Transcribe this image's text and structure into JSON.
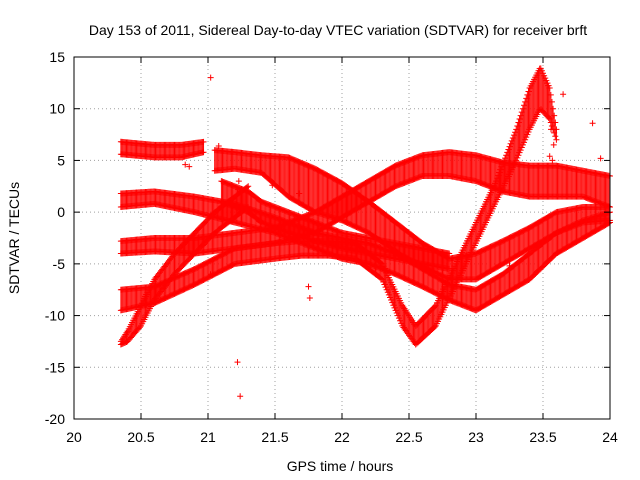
{
  "chart_data": {
    "type": "scatter",
    "title": "Day 153 of 2011, Sidereal Day-to-day VTEC variation (SDTVAR) for receiver brft",
    "xlabel": "GPS time / hours",
    "ylabel": "SDTVAR / TECUs",
    "xlim": [
      20,
      24
    ],
    "ylim": [
      -20,
      15
    ],
    "xticks": [
      "20",
      "20.5",
      "21",
      "21.5",
      "22",
      "22.5",
      "23",
      "23.5",
      "24"
    ],
    "yticks": [
      "15",
      "10",
      "5",
      "0",
      "-5",
      "-10",
      "-15",
      "-20"
    ],
    "grid": true,
    "marker": "+",
    "marker_color": "#ff0000",
    "series": [
      {
        "band": true,
        "upper": [
          [
            20.35,
            6.8
          ],
          [
            20.6,
            6.5
          ],
          [
            20.8,
            6.5
          ],
          [
            20.97,
            6.8
          ]
        ],
        "lower": [
          [
            20.35,
            5.6
          ],
          [
            20.6,
            5.3
          ],
          [
            20.8,
            5.3
          ],
          [
            20.97,
            5.8
          ]
        ]
      },
      {
        "band": true,
        "upper": [
          [
            21.05,
            6.0
          ],
          [
            21.2,
            5.8
          ],
          [
            21.4,
            5.5
          ],
          [
            21.6,
            5.3
          ],
          [
            21.8,
            4.2
          ],
          [
            22.0,
            2.8
          ],
          [
            22.2,
            1.0
          ],
          [
            22.45,
            -1.5
          ],
          [
            22.6,
            -3.0
          ],
          [
            22.8,
            -4.5
          ],
          [
            23.0,
            -4.0
          ],
          [
            23.2,
            -2.8
          ],
          [
            23.4,
            -1.5
          ],
          [
            23.6,
            0.0
          ],
          [
            23.8,
            0.5
          ],
          [
            24.0,
            0.5
          ]
        ],
        "lower": [
          [
            21.05,
            4.0
          ],
          [
            21.2,
            4.2
          ],
          [
            21.4,
            3.8
          ],
          [
            21.6,
            1.5
          ],
          [
            21.8,
            0.0
          ],
          [
            22.0,
            -0.8
          ],
          [
            22.2,
            -2.0
          ],
          [
            22.45,
            -4.2
          ],
          [
            22.6,
            -5.2
          ],
          [
            22.8,
            -6.5
          ],
          [
            23.0,
            -6.5
          ],
          [
            23.2,
            -5.0
          ],
          [
            23.4,
            -3.5
          ],
          [
            23.6,
            -2.0
          ],
          [
            23.8,
            -1.0
          ],
          [
            24.0,
            -0.8
          ]
        ]
      },
      {
        "band": true,
        "upper": [
          [
            20.35,
            1.8
          ],
          [
            20.6,
            2.0
          ],
          [
            20.9,
            1.5
          ],
          [
            21.2,
            0.8
          ],
          [
            21.5,
            -0.5
          ],
          [
            21.8,
            -2.0
          ],
          [
            22.0,
            -2.5
          ],
          [
            22.2,
            -3.0
          ],
          [
            22.4,
            -4.0
          ],
          [
            22.6,
            -5.5
          ],
          [
            22.8,
            -7.0
          ],
          [
            23.0,
            -7.5
          ],
          [
            23.2,
            -6.0
          ],
          [
            23.4,
            -4.0
          ],
          [
            23.6,
            -2.0
          ],
          [
            23.8,
            -0.8
          ],
          [
            24.0,
            0.0
          ]
        ],
        "lower": [
          [
            20.35,
            0.5
          ],
          [
            20.6,
            0.8
          ],
          [
            20.9,
            0.0
          ],
          [
            21.2,
            -1.0
          ],
          [
            21.5,
            -2.0
          ],
          [
            21.8,
            -3.5
          ],
          [
            22.0,
            -4.5
          ],
          [
            22.2,
            -5.0
          ],
          [
            22.4,
            -6.0
          ],
          [
            22.6,
            -7.2
          ],
          [
            22.8,
            -8.5
          ],
          [
            23.0,
            -9.5
          ],
          [
            23.2,
            -8.0
          ],
          [
            23.4,
            -6.5
          ],
          [
            23.6,
            -4.0
          ],
          [
            23.8,
            -2.5
          ],
          [
            24.0,
            -1.0
          ]
        ]
      },
      {
        "band": true,
        "upper": [
          [
            20.35,
            -2.8
          ],
          [
            20.6,
            -2.5
          ],
          [
            20.9,
            -2.5
          ],
          [
            21.2,
            -2.0
          ],
          [
            21.5,
            -1.5
          ],
          [
            21.8,
            0.0
          ],
          [
            22.0,
            1.5
          ],
          [
            22.2,
            3.0
          ],
          [
            22.4,
            4.5
          ],
          [
            22.6,
            5.5
          ],
          [
            22.8,
            5.8
          ],
          [
            23.0,
            5.5
          ],
          [
            23.2,
            4.8
          ],
          [
            23.4,
            4.5
          ],
          [
            23.6,
            4.5
          ],
          [
            23.8,
            4.0
          ],
          [
            24.0,
            3.5
          ]
        ],
        "lower": [
          [
            20.35,
            -4.0
          ],
          [
            20.6,
            -3.8
          ],
          [
            20.9,
            -4.0
          ],
          [
            21.2,
            -3.5
          ],
          [
            21.5,
            -3.0
          ],
          [
            21.8,
            -2.0
          ],
          [
            22.0,
            -0.5
          ],
          [
            22.2,
            1.0
          ],
          [
            22.4,
            2.5
          ],
          [
            22.6,
            3.5
          ],
          [
            22.8,
            3.5
          ],
          [
            23.0,
            3.0
          ],
          [
            23.2,
            2.0
          ],
          [
            23.4,
            1.5
          ],
          [
            23.6,
            1.5
          ],
          [
            23.8,
            1.5
          ],
          [
            24.0,
            0.5
          ]
        ]
      },
      {
        "band": true,
        "upper": [
          [
            20.35,
            -7.5
          ],
          [
            20.6,
            -7.2
          ],
          [
            20.9,
            -5.5
          ],
          [
            21.2,
            -3.5
          ],
          [
            21.5,
            -3.0
          ],
          [
            21.7,
            -2.8
          ],
          [
            21.9,
            -2.8
          ],
          [
            22.1,
            -3.0
          ],
          [
            22.3,
            -5.0
          ],
          [
            22.45,
            -9.0
          ],
          [
            22.55,
            -11.0
          ],
          [
            22.7,
            -9.0
          ],
          [
            22.85,
            -5.0
          ],
          [
            23.0,
            -1.0
          ],
          [
            23.15,
            3.0
          ],
          [
            23.3,
            8.0
          ],
          [
            23.4,
            12.0
          ],
          [
            23.48,
            14.0
          ],
          [
            23.55,
            12.0
          ],
          [
            23.6,
            8.0
          ]
        ],
        "lower": [
          [
            20.35,
            -9.5
          ],
          [
            20.6,
            -8.8
          ],
          [
            20.9,
            -7.0
          ],
          [
            21.2,
            -5.0
          ],
          [
            21.5,
            -4.5
          ],
          [
            21.7,
            -4.2
          ],
          [
            21.9,
            -4.2
          ],
          [
            22.1,
            -4.5
          ],
          [
            22.3,
            -6.5
          ],
          [
            22.45,
            -11.0
          ],
          [
            22.55,
            -12.8
          ],
          [
            22.7,
            -11.0
          ],
          [
            22.85,
            -7.0
          ],
          [
            23.0,
            -3.0
          ],
          [
            23.15,
            1.0
          ],
          [
            23.3,
            5.0
          ],
          [
            23.4,
            8.0
          ],
          [
            23.48,
            10.0
          ],
          [
            23.55,
            9.0
          ],
          [
            23.6,
            7.0
          ]
        ]
      },
      {
        "band": true,
        "upper": [
          [
            20.35,
            -12.5
          ],
          [
            20.4,
            -11.5
          ],
          [
            20.5,
            -9.0
          ],
          [
            20.6,
            -6.5
          ],
          [
            20.75,
            -4.0
          ],
          [
            20.9,
            -2.0
          ],
          [
            21.05,
            0.0
          ],
          [
            21.2,
            1.5
          ],
          [
            21.3,
            2.5
          ]
        ],
        "lower": [
          [
            20.35,
            -12.8
          ],
          [
            20.4,
            -12.5
          ],
          [
            20.5,
            -11.0
          ],
          [
            20.6,
            -8.5
          ],
          [
            20.75,
            -6.0
          ],
          [
            20.9,
            -4.0
          ],
          [
            21.05,
            -2.0
          ],
          [
            21.2,
            -0.5
          ],
          [
            21.3,
            0.5
          ]
        ]
      },
      {
        "band": true,
        "upper": [
          [
            21.1,
            3.0
          ],
          [
            21.2,
            2.5
          ],
          [
            21.3,
            2.0
          ],
          [
            21.4,
            1.0
          ],
          [
            21.5,
            0.5
          ],
          [
            21.6,
            0.0
          ],
          [
            21.8,
            -1.0
          ],
          [
            22.0,
            -2.0
          ],
          [
            22.2,
            -2.5
          ],
          [
            22.4,
            -3.0
          ],
          [
            22.6,
            -3.5
          ],
          [
            22.8,
            -4.0
          ]
        ],
        "lower": [
          [
            21.1,
            1.0
          ],
          [
            21.2,
            0.5
          ],
          [
            21.3,
            0.0
          ],
          [
            21.4,
            -1.0
          ],
          [
            21.5,
            -1.5
          ],
          [
            21.6,
            -2.0
          ],
          [
            21.8,
            -2.8
          ],
          [
            22.0,
            -3.5
          ],
          [
            22.2,
            -4.0
          ],
          [
            22.4,
            -4.5
          ],
          [
            22.6,
            -5.0
          ],
          [
            22.8,
            -5.5
          ]
        ]
      },
      {
        "band": false,
        "points": [
          [
            21.02,
            13.0
          ],
          [
            21.22,
            -14.5
          ],
          [
            21.24,
            -17.8
          ],
          [
            21.02,
            -6.0
          ],
          [
            21.23,
            3.0
          ],
          [
            21.22,
            2.2
          ],
          [
            20.83,
            4.6
          ],
          [
            20.86,
            4.4
          ],
          [
            21.75,
            -7.2
          ],
          [
            21.76,
            -8.3
          ],
          [
            23.58,
            6.5
          ],
          [
            23.65,
            11.4
          ],
          [
            23.87,
            8.6
          ],
          [
            23.93,
            5.2
          ],
          [
            23.55,
            5.4
          ],
          [
            23.57,
            5.0
          ],
          [
            23.56,
            8.0
          ],
          [
            21.08,
            6.4
          ],
          [
            21.68,
            1.8
          ],
          [
            23.25,
            -5.2
          ],
          [
            21.48,
            2.6
          ]
        ]
      }
    ]
  }
}
